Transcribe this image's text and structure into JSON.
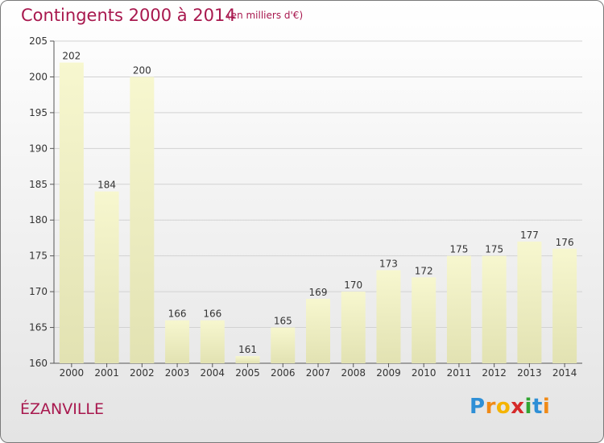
{
  "title": "Contingents 2000 à 2014",
  "subtitle": "(en milliers d'€)",
  "town": "ÉZANVILLE",
  "logo": {
    "letters": [
      "P",
      "r",
      "o",
      "x",
      "i",
      "t",
      "i"
    ],
    "colors": [
      "#2e8fd6",
      "#f08a17",
      "#f5b400",
      "#d52a2a",
      "#31a531",
      "#2e8fd6",
      "#f08a17"
    ]
  },
  "chart_data": {
    "type": "bar",
    "categories": [
      "2000",
      "2001",
      "2002",
      "2003",
      "2004",
      "2005",
      "2006",
      "2007",
      "2008",
      "2009",
      "2010",
      "2011",
      "2012",
      "2013",
      "2014"
    ],
    "values": [
      202,
      184,
      200,
      166,
      166,
      161,
      165,
      169,
      170,
      173,
      172,
      175,
      175,
      177,
      176
    ],
    "data_labels": [
      "202",
      "184",
      "200",
      "166",
      "166",
      "161",
      "165",
      "169",
      "170",
      "173",
      "172",
      "175",
      "175",
      "177",
      "176"
    ],
    "ylim": [
      160,
      205
    ],
    "yticks": [
      "160",
      "165",
      "170",
      "175",
      "180",
      "185",
      "190",
      "195",
      "200",
      "205"
    ],
    "grid": true,
    "bar_color": "#f7f7cf",
    "bar_color_bottom": "#e2e2b2"
  }
}
